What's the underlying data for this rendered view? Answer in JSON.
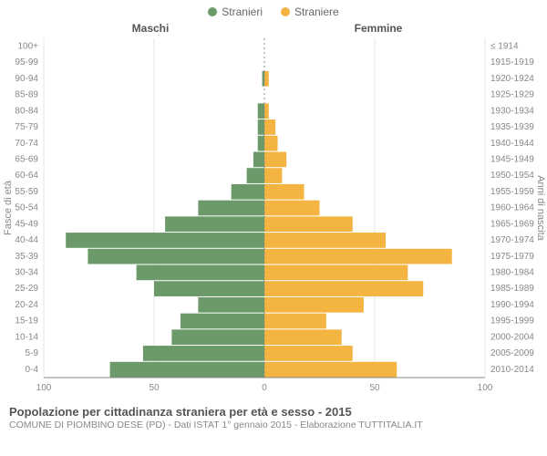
{
  "legend": {
    "male": {
      "label": "Stranieri",
      "color": "#6b9969"
    },
    "female": {
      "label": "Straniere",
      "color": "#f3b442"
    }
  },
  "headers": {
    "male": "Maschi",
    "female": "Femmine"
  },
  "axis_left_label": "Fasce di età",
  "axis_right_label": "Anni di nascita",
  "footer_title": "Popolazione per cittadinanza straniera per età e sesso - 2015",
  "footer_sub": "COMUNE DI PIOMBINO DESE (PD) - Dati ISTAT 1° gennaio 2015 - Elaborazione TUTTITALIA.IT",
  "chart": {
    "type": "population-pyramid",
    "background_color": "#ffffff",
    "grid_color": "#cccccc",
    "tick_color": "#888888",
    "label_color": "#888888",
    "center_line_color": "#888888",
    "center_line_dash": "2,3",
    "male_color": "#6b9969",
    "female_color": "#f3b442",
    "xlim": 100,
    "xtick_step": 50,
    "xticks": [
      100,
      50,
      0,
      50,
      100
    ],
    "label_fontsize": 10,
    "axis_title_fontsize": 11,
    "bar_gap": 1,
    "rows": [
      {
        "age": "100+",
        "year": "≤ 1914",
        "m": 0,
        "f": 0
      },
      {
        "age": "95-99",
        "year": "1915-1919",
        "m": 0,
        "f": 0
      },
      {
        "age": "90-94",
        "year": "1920-1924",
        "m": 1,
        "f": 2
      },
      {
        "age": "85-89",
        "year": "1925-1929",
        "m": 0,
        "f": 0
      },
      {
        "age": "80-84",
        "year": "1930-1934",
        "m": 3,
        "f": 2
      },
      {
        "age": "75-79",
        "year": "1935-1939",
        "m": 3,
        "f": 5
      },
      {
        "age": "70-74",
        "year": "1940-1944",
        "m": 3,
        "f": 6
      },
      {
        "age": "65-69",
        "year": "1945-1949",
        "m": 5,
        "f": 10
      },
      {
        "age": "60-64",
        "year": "1950-1954",
        "m": 8,
        "f": 8
      },
      {
        "age": "55-59",
        "year": "1955-1959",
        "m": 15,
        "f": 18
      },
      {
        "age": "50-54",
        "year": "1960-1964",
        "m": 30,
        "f": 25
      },
      {
        "age": "45-49",
        "year": "1965-1969",
        "m": 45,
        "f": 40
      },
      {
        "age": "40-44",
        "year": "1970-1974",
        "m": 90,
        "f": 55
      },
      {
        "age": "35-39",
        "year": "1975-1979",
        "m": 80,
        "f": 85
      },
      {
        "age": "30-34",
        "year": "1980-1984",
        "m": 58,
        "f": 65
      },
      {
        "age": "25-29",
        "year": "1985-1989",
        "m": 50,
        "f": 72
      },
      {
        "age": "20-24",
        "year": "1990-1994",
        "m": 30,
        "f": 45
      },
      {
        "age": "15-19",
        "year": "1995-1999",
        "m": 38,
        "f": 28
      },
      {
        "age": "10-14",
        "year": "2000-2004",
        "m": 42,
        "f": 35
      },
      {
        "age": "5-9",
        "year": "2005-2009",
        "m": 55,
        "f": 40
      },
      {
        "age": "0-4",
        "year": "2010-2014",
        "m": 70,
        "f": 60
      }
    ]
  }
}
